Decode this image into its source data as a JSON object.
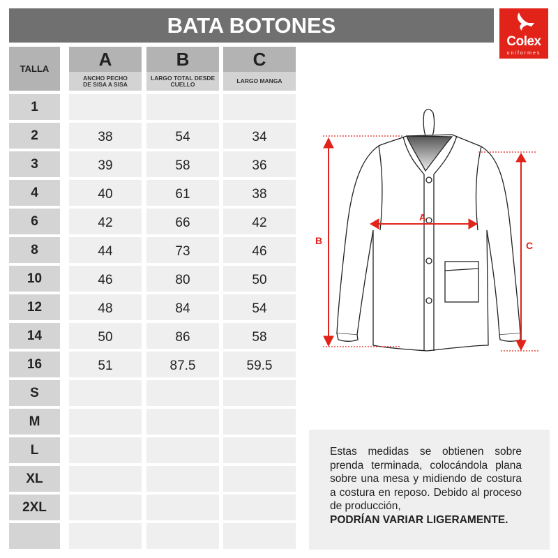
{
  "title": "BATA BOTONES",
  "logo": {
    "brand": "Colex",
    "sub": "uniformes",
    "color": "#e2231a"
  },
  "table": {
    "size_header": "TALLA",
    "columns": [
      {
        "letter": "A",
        "desc": "ANCHO PECHO DE SISA A SISA"
      },
      {
        "letter": "B",
        "desc": "LARGO TOTAL DESDE CUELLO"
      },
      {
        "letter": "C",
        "desc": "LARGO MANGA"
      }
    ],
    "rows": [
      {
        "size": "1",
        "a": "",
        "b": "",
        "c": ""
      },
      {
        "size": "2",
        "a": "38",
        "b": "54",
        "c": "34"
      },
      {
        "size": "3",
        "a": "39",
        "b": "58",
        "c": "36"
      },
      {
        "size": "4",
        "a": "40",
        "b": "61",
        "c": "38"
      },
      {
        "size": "6",
        "a": "42",
        "b": "66",
        "c": "42"
      },
      {
        "size": "8",
        "a": "44",
        "b": "73",
        "c": "46"
      },
      {
        "size": "10",
        "a": "46",
        "b": "80",
        "c": "50"
      },
      {
        "size": "12",
        "a": "48",
        "b": "84",
        "c": "54"
      },
      {
        "size": "14",
        "a": "50",
        "b": "86",
        "c": "58"
      },
      {
        "size": "16",
        "a": "51",
        "b": "87.5",
        "c": "59.5"
      },
      {
        "size": "S",
        "a": "",
        "b": "",
        "c": ""
      },
      {
        "size": "M",
        "a": "",
        "b": "",
        "c": ""
      },
      {
        "size": "L",
        "a": "",
        "b": "",
        "c": ""
      },
      {
        "size": "XL",
        "a": "",
        "b": "",
        "c": ""
      },
      {
        "size": "2XL",
        "a": "",
        "b": "",
        "c": ""
      },
      {
        "size": "",
        "a": "",
        "b": "",
        "c": ""
      }
    ]
  },
  "diagram": {
    "label_a": "A",
    "label_b": "B",
    "label_c": "C",
    "accent": "#e2231a"
  },
  "note": {
    "text": "Estas medidas se obtienen sobre prenda terminada, colocándola plana sobre una mesa y midiendo de costura a costura en reposo. Debido al proceso de producción,",
    "emphasis": "PODRÍAN VARIAR LIGERAMENTE."
  }
}
